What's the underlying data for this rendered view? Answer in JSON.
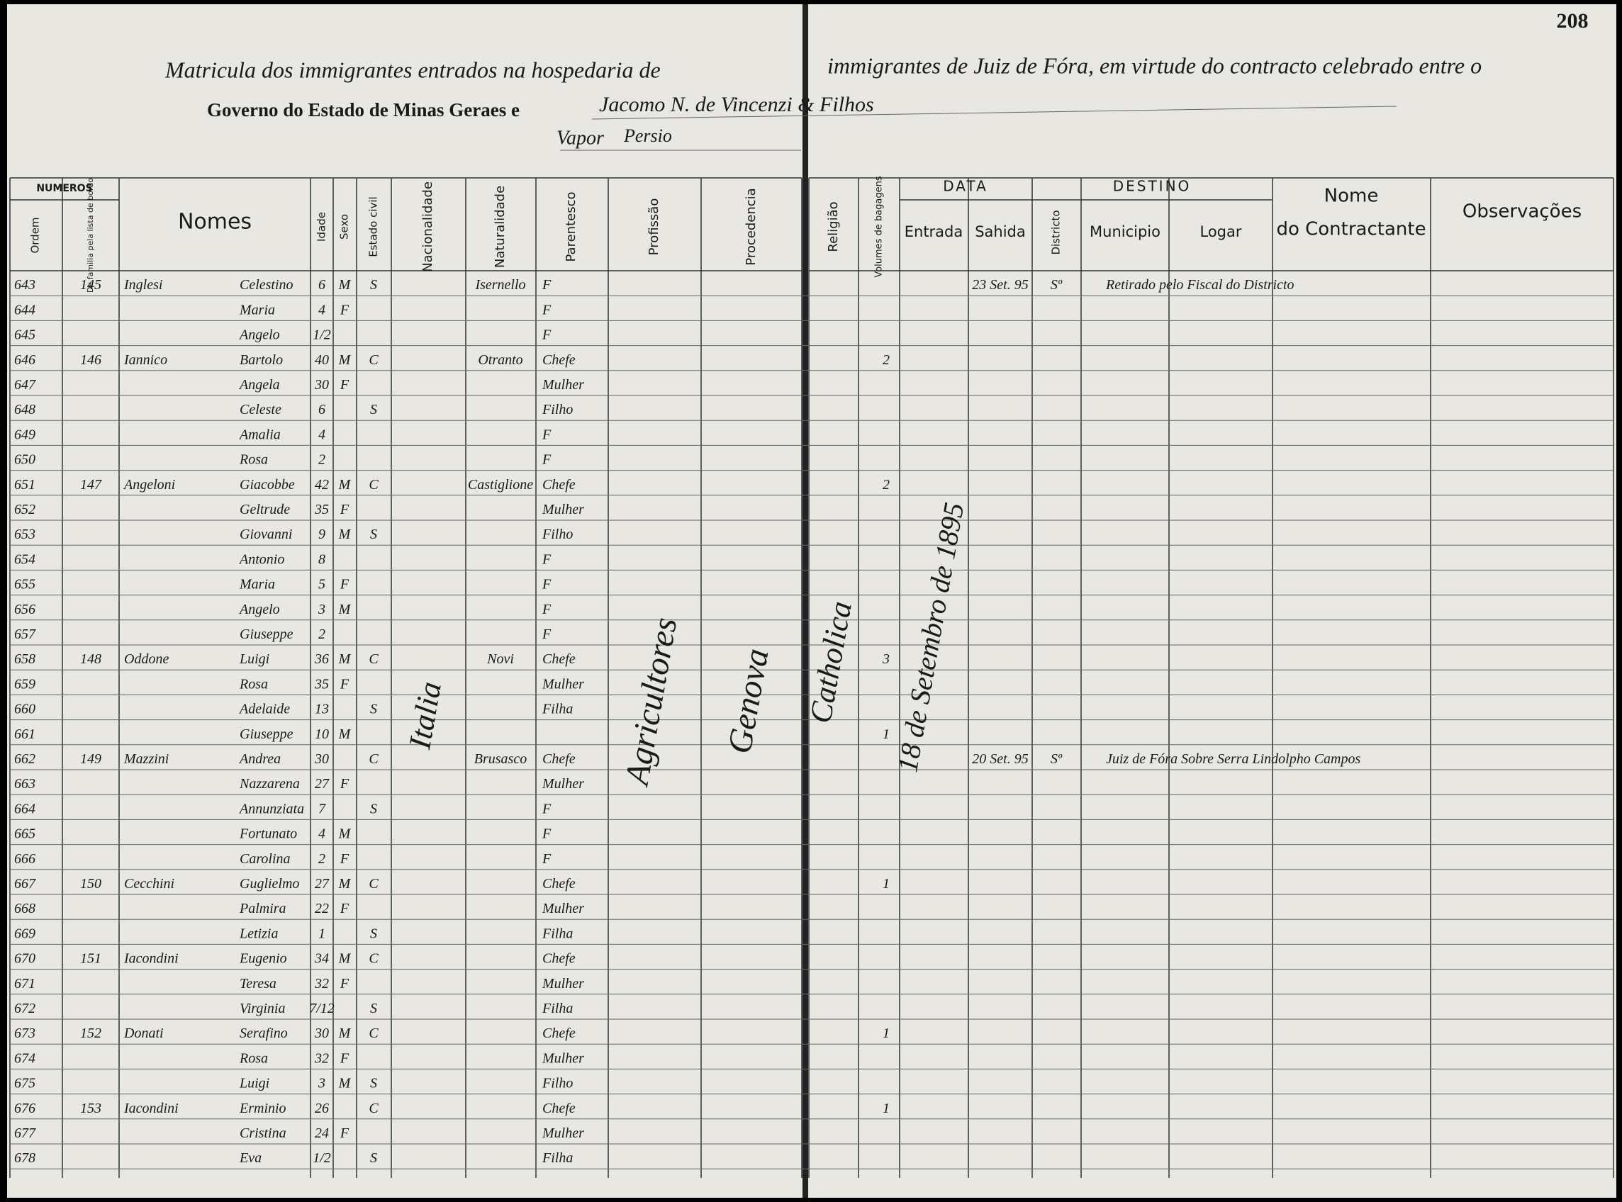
{
  "page_number": "208",
  "header": {
    "title_left": "Matricula dos immigrantes entrados na hospedaria de",
    "title_right": "immigrantes de Juiz de Fóra, em virtude do contracto celebrado entre o",
    "governo": "Governo do Estado de Minas Geraes e",
    "contractor": "Jacomo N. de Vincenzi & Filhos",
    "vapor_label": "Vapor",
    "vapor_name": "Persio"
  },
  "columns": {
    "numeros": "NUMEROS",
    "ordem": "Ordem",
    "familia": "De familia pela lista de bordo",
    "nomes": "Nomes",
    "idade": "Idade",
    "sexo": "Sexo",
    "estado_civil": "Estado civil",
    "nacionalidade": "Nacionalidade",
    "naturalidade": "Naturalidade",
    "parentesco": "Parentesco",
    "profissao": "Profissão",
    "procedencia": "Procedencia",
    "religiao": "Religião",
    "volumes": "Volumes de bagagens",
    "data": "DATA",
    "entrada": "Entrada",
    "sahida": "Sahida",
    "destino": "DESTINO",
    "districto": "Districto",
    "municipio": "Municipio",
    "logar": "Logar",
    "contractante_1": "Nome",
    "contractante_2": "do Contractante",
    "observacoes": "Observações"
  },
  "annotations": {
    "nacionalidade": "Italia",
    "profissao": "Agricultores",
    "procedencia": "Genova",
    "religiao": "Catholica",
    "entrada": "18 de Setembro de 1895"
  },
  "rows": [
    {
      "ordem": "643",
      "familia": "145",
      "sobrenome": "Inglesi",
      "nome": "Celestino",
      "idade": "6",
      "sexo": "M",
      "estado_civil": "S",
      "naturalidade": "Isernello",
      "parentesco": "F",
      "sahida": "23 Set. 95",
      "districto": "Sº",
      "destino_note": "Retirado pelo Fiscal do Districto"
    },
    {
      "ordem": "644",
      "nome": "Maria",
      "idade": "4",
      "sexo": "F",
      "parentesco": "F"
    },
    {
      "ordem": "645",
      "nome": "Angelo",
      "idade": "1/2",
      "parentesco": "F"
    },
    {
      "ordem": "646",
      "familia": "146",
      "sobrenome": "Iannico",
      "nome": "Bartolo",
      "idade": "40",
      "sexo": "M",
      "estado_civil": "C",
      "naturalidade": "Otranto",
      "parentesco": "Chefe",
      "volumes": "2"
    },
    {
      "ordem": "647",
      "nome": "Angela",
      "idade": "30",
      "sexo": "F",
      "parentesco": "Mulher"
    },
    {
      "ordem": "648",
      "nome": "Celeste",
      "idade": "6",
      "estado_civil": "S",
      "parentesco": "Filho"
    },
    {
      "ordem": "649",
      "nome": "Amalia",
      "idade": "4",
      "parentesco": "F"
    },
    {
      "ordem": "650",
      "nome": "Rosa",
      "idade": "2",
      "parentesco": "F"
    },
    {
      "ordem": "651",
      "familia": "147",
      "sobrenome": "Angeloni",
      "nome": "Giacobbe",
      "idade": "42",
      "sexo": "M",
      "estado_civil": "C",
      "naturalidade": "Castiglione",
      "parentesco": "Chefe",
      "volumes": "2"
    },
    {
      "ordem": "652",
      "nome": "Geltrude",
      "idade": "35",
      "sexo": "F",
      "parentesco": "Mulher"
    },
    {
      "ordem": "653",
      "nome": "Giovanni",
      "idade": "9",
      "sexo": "M",
      "estado_civil": "S",
      "parentesco": "Filho"
    },
    {
      "ordem": "654",
      "nome": "Antonio",
      "idade": "8",
      "parentesco": "F"
    },
    {
      "ordem": "655",
      "nome": "Maria",
      "idade": "5",
      "sexo": "F",
      "parentesco": "F"
    },
    {
      "ordem": "656",
      "nome": "Angelo",
      "idade": "3",
      "sexo": "M",
      "parentesco": "F"
    },
    {
      "ordem": "657",
      "nome": "Giuseppe",
      "idade": "2",
      "parentesco": "F"
    },
    {
      "ordem": "658",
      "familia": "148",
      "sobrenome": "Oddone",
      "nome": "Luigi",
      "idade": "36",
      "sexo": "M",
      "estado_civil": "C",
      "naturalidade": "Novi",
      "parentesco": "Chefe",
      "volumes": "3"
    },
    {
      "ordem": "659",
      "nome": "Rosa",
      "idade": "35",
      "sexo": "F",
      "parentesco": "Mulher"
    },
    {
      "ordem": "660",
      "nome": "Adelaide",
      "idade": "13",
      "estado_civil": "S",
      "parentesco": "Filha"
    },
    {
      "ordem": "661",
      "nome": "Giuseppe",
      "idade": "10",
      "sexo": "M",
      "volumes": "1"
    },
    {
      "ordem": "662",
      "familia": "149",
      "sobrenome": "Mazzini",
      "nome": "Andrea",
      "idade": "30",
      "estado_civil": "C",
      "naturalidade": "Brusasco",
      "parentesco": "Chefe",
      "sahida": "20 Set. 95",
      "districto": "Sº",
      "destino_note": "Juiz de Fóra  Sobre Serra  Lindolpho Campos"
    },
    {
      "ordem": "663",
      "nome": "Nazzarena",
      "idade": "27",
      "sexo": "F",
      "parentesco": "Mulher"
    },
    {
      "ordem": "664",
      "nome": "Annunziata",
      "idade": "7",
      "estado_civil": "S",
      "parentesco": "F"
    },
    {
      "ordem": "665",
      "nome": "Fortunato",
      "idade": "4",
      "sexo": "M",
      "parentesco": "F"
    },
    {
      "ordem": "666",
      "nome": "Carolina",
      "idade": "2",
      "sexo": "F",
      "parentesco": "F"
    },
    {
      "ordem": "667",
      "familia": "150",
      "sobrenome": "Cecchini",
      "nome": "Guglielmo",
      "idade": "27",
      "sexo": "M",
      "estado_civil": "C",
      "parentesco": "Chefe",
      "volumes": "1"
    },
    {
      "ordem": "668",
      "nome": "Palmira",
      "idade": "22",
      "sexo": "F",
      "parentesco": "Mulher"
    },
    {
      "ordem": "669",
      "nome": "Letizia",
      "idade": "1",
      "estado_civil": "S",
      "parentesco": "Filha"
    },
    {
      "ordem": "670",
      "familia": "151",
      "sobrenome": "Iacondini",
      "nome": "Eugenio",
      "idade": "34",
      "sexo": "M",
      "estado_civil": "C",
      "parentesco": "Chefe"
    },
    {
      "ordem": "671",
      "nome": "Teresa",
      "idade": "32",
      "sexo": "F",
      "parentesco": "Mulher"
    },
    {
      "ordem": "672",
      "nome": "Virginia",
      "idade": "7/12",
      "estado_civil": "S",
      "parentesco": "Filha"
    },
    {
      "ordem": "673",
      "familia": "152",
      "sobrenome": "Donati",
      "nome": "Serafino",
      "idade": "30",
      "sexo": "M",
      "estado_civil": "C",
      "parentesco": "Chefe",
      "volumes": "1"
    },
    {
      "ordem": "674",
      "nome": "Rosa",
      "idade": "32",
      "sexo": "F",
      "parentesco": "Mulher"
    },
    {
      "ordem": "675",
      "nome": "Luigi",
      "idade": "3",
      "sexo": "M",
      "estado_civil": "S",
      "parentesco": "Filho"
    },
    {
      "ordem": "676",
      "familia": "153",
      "sobrenome": "Iacondini",
      "nome": "Erminio",
      "idade": "26",
      "estado_civil": "C",
      "parentesco": "Chefe",
      "volumes": "1"
    },
    {
      "ordem": "677",
      "nome": "Cristina",
      "idade": "24",
      "sexo": "F",
      "parentesco": "Mulher"
    },
    {
      "ordem": "678",
      "nome": "Eva",
      "idade": "1/2",
      "estado_civil": "S",
      "parentesco": "Filha"
    }
  ]
}
